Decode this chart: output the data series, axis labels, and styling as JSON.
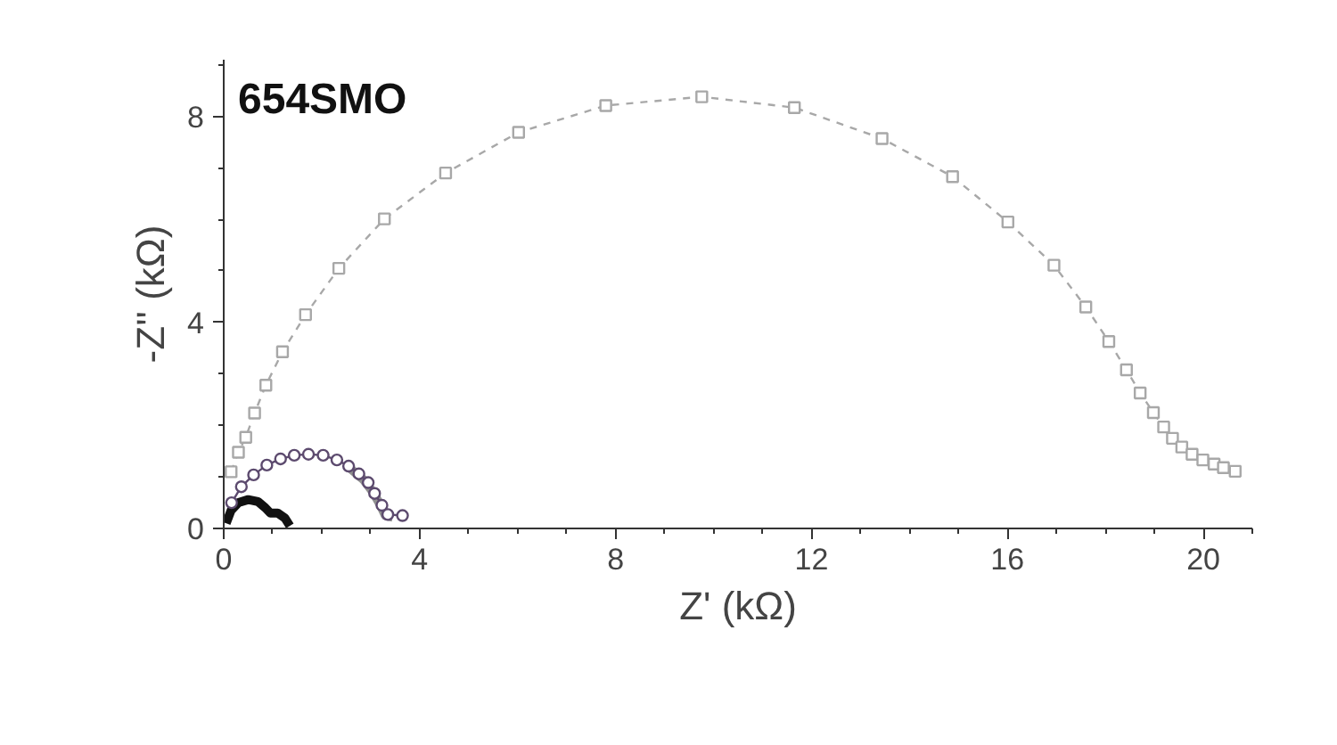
{
  "chart_data": {
    "type": "line",
    "title": "654SMO",
    "xlabel": "Z' (kΩ)",
    "ylabel": "-Z'' (kΩ)",
    "xlim": [
      0,
      21
    ],
    "ylim": [
      0,
      9.1
    ],
    "xticks": [
      0,
      {
        "value": 1,
        "label": null
      },
      {
        "value": 2,
        "label": null
      },
      {
        "value": 3,
        "label": null
      },
      4,
      {
        "value": 5,
        "label": null
      },
      {
        "value": 6,
        "label": null
      },
      {
        "value": 7,
        "label": null
      },
      8,
      {
        "value": 9,
        "label": null
      },
      {
        "value": 10,
        "label": null
      },
      {
        "value": 11,
        "label": null
      },
      12,
      {
        "value": 13,
        "label": null
      },
      {
        "value": 14,
        "label": null
      },
      {
        "value": 15,
        "label": null
      },
      16,
      {
        "value": 17,
        "label": null
      },
      {
        "value": 18,
        "label": null
      },
      {
        "value": 19,
        "label": null
      },
      20,
      {
        "value": 21,
        "label": null
      }
    ],
    "yticks": [
      0,
      {
        "value": 1,
        "label": null
      },
      {
        "value": 2,
        "label": null
      },
      {
        "value": 3,
        "label": null
      },
      4,
      {
        "value": 5,
        "label": null
      },
      {
        "value": 6,
        "label": null
      },
      {
        "value": 7,
        "label": null
      },
      8,
      {
        "value": 9,
        "label": null
      }
    ],
    "grid": false,
    "series": [
      {
        "color": "#a8a8a8",
        "marker": "square",
        "line_style": "dashed",
        "x": [
          0.15,
          0.3,
          0.45,
          0.63,
          0.86,
          1.2,
          1.67,
          2.35,
          3.28,
          4.53,
          6.02,
          7.8,
          9.76,
          11.65,
          13.44,
          14.88,
          16.01,
          16.95,
          17.6,
          18.07,
          18.43,
          18.71,
          18.98,
          19.19,
          19.37,
          19.56,
          19.77,
          19.99,
          20.22,
          20.41,
          20.65
        ],
        "values": [
          1.1,
          1.48,
          1.77,
          2.24,
          2.78,
          3.43,
          4.15,
          5.05,
          6.01,
          6.9,
          7.69,
          8.21,
          8.38,
          8.17,
          7.57,
          6.83,
          5.95,
          5.11,
          4.3,
          3.63,
          3.08,
          2.63,
          2.25,
          1.97,
          1.75,
          1.58,
          1.44,
          1.33,
          1.25,
          1.18,
          1.11
        ]
      },
      {
        "color": "#5c4a6e",
        "marker": "circle",
        "line_style": "solid",
        "x": [
          0.16,
          0.36,
          0.61,
          0.88,
          1.16,
          1.44,
          1.73,
          2.03,
          2.31,
          2.55,
          2.76,
          2.95,
          3.08,
          3.23,
          3.35,
          3.65
        ],
        "values": [
          0.5,
          0.81,
          1.04,
          1.23,
          1.35,
          1.42,
          1.44,
          1.42,
          1.33,
          1.21,
          1.06,
          0.89,
          0.68,
          0.45,
          0.27,
          0.25
        ]
      },
      {
        "color": "#909090",
        "marker": "none",
        "line_style": "solid",
        "x": [
          2.6,
          2.85,
          3.05,
          3.2,
          3.3,
          3.45
        ],
        "values": [
          1.15,
          0.95,
          0.7,
          0.45,
          0.25,
          0.22
        ]
      },
      {
        "color": "#111111",
        "marker": "none",
        "line_style": "solid",
        "x": [
          0.05,
          0.15,
          0.3,
          0.5,
          0.7,
          0.85,
          0.95,
          1.1,
          1.25,
          1.35
        ],
        "values": [
          0.1,
          0.35,
          0.5,
          0.56,
          0.52,
          0.4,
          0.3,
          0.3,
          0.2,
          0.05
        ]
      }
    ]
  }
}
